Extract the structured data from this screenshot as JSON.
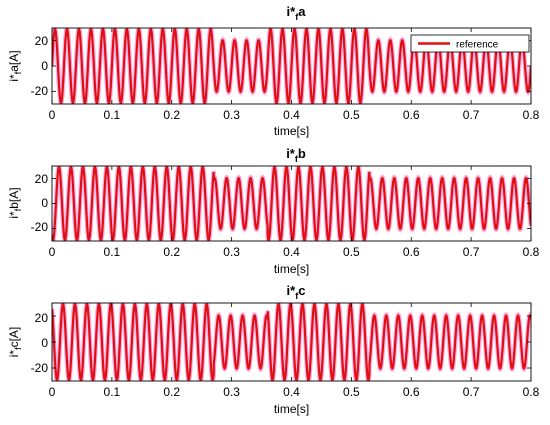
{
  "chart_data": [
    {
      "type": "line",
      "title": {
        "main": "i*",
        "sub": "f",
        "suffix": "a"
      },
      "xlabel": "time[s]",
      "ylabel": {
        "main": "i*",
        "sub": "f",
        "suffix": "a[A]"
      },
      "xlim": [
        0,
        0.8
      ],
      "ylim": [
        -30,
        30
      ],
      "xticks": [
        "0",
        "0.1",
        "0.2",
        "0.3",
        "0.4",
        "0.5",
        "0.6",
        "0.7",
        "0.8"
      ],
      "yticks": [
        "20",
        "0",
        "-20"
      ],
      "legend": {
        "label": "reference",
        "placement": "top-right"
      },
      "frequency_hz": 50,
      "phase_deg": 0,
      "segments": [
        {
          "t0": 0.0,
          "t1": 0.27,
          "amplitude": 30
        },
        {
          "t0": 0.27,
          "t1": 0.36,
          "amplitude": 21
        },
        {
          "t0": 0.36,
          "t1": 0.53,
          "amplitude": 30
        },
        {
          "t0": 0.53,
          "t1": 0.8,
          "amplitude": 21
        }
      ],
      "series": [
        {
          "name": "reference",
          "color": "#dd1111"
        },
        {
          "color": "#2e8b2e"
        },
        {
          "color": "#ff66cc"
        }
      ]
    },
    {
      "type": "line",
      "title": {
        "main": "i*",
        "sub": "f",
        "suffix": "b"
      },
      "xlabel": "time[s]",
      "ylabel": {
        "main": "i*",
        "sub": "f",
        "suffix": "b[A]"
      },
      "xlim": [
        0,
        0.8
      ],
      "ylim": [
        -30,
        30
      ],
      "xticks": [
        "0",
        "0.1",
        "0.2",
        "0.3",
        "0.4",
        "0.5",
        "0.6",
        "0.7",
        "0.8"
      ],
      "yticks": [
        "20",
        "0",
        "-20"
      ],
      "frequency_hz": 50,
      "phase_deg": -120,
      "segments": [
        {
          "t0": 0.0,
          "t1": 0.27,
          "amplitude": 30
        },
        {
          "t0": 0.27,
          "t1": 0.36,
          "amplitude": 21
        },
        {
          "t0": 0.36,
          "t1": 0.53,
          "amplitude": 30
        },
        {
          "t0": 0.53,
          "t1": 0.8,
          "amplitude": 21
        }
      ],
      "series": [
        {
          "color": "#dd1111"
        },
        {
          "color": "#2e8b2e"
        },
        {
          "color": "#ff66cc"
        }
      ]
    },
    {
      "type": "line",
      "title": {
        "main": "i*",
        "sub": "f",
        "suffix": "c"
      },
      "xlabel": "time[s]",
      "ylabel": {
        "main": "i*",
        "sub": "f",
        "suffix": "c[A]"
      },
      "xlim": [
        0,
        0.8
      ],
      "ylim": [
        -30,
        30
      ],
      "xticks": [
        "0",
        "0.1",
        "0.2",
        "0.3",
        "0.4",
        "0.5",
        "0.6",
        "0.7",
        "0.8"
      ],
      "yticks": [
        "20",
        "0",
        "-20"
      ],
      "frequency_hz": 50,
      "phase_deg": 120,
      "segments": [
        {
          "t0": 0.0,
          "t1": 0.27,
          "amplitude": 30
        },
        {
          "t0": 0.27,
          "t1": 0.36,
          "amplitude": 21
        },
        {
          "t0": 0.36,
          "t1": 0.53,
          "amplitude": 30
        },
        {
          "t0": 0.53,
          "t1": 0.8,
          "amplitude": 21
        }
      ],
      "series": [
        {
          "color": "#dd1111"
        },
        {
          "color": "#2e8b2e"
        },
        {
          "color": "#ff66cc"
        }
      ]
    }
  ]
}
